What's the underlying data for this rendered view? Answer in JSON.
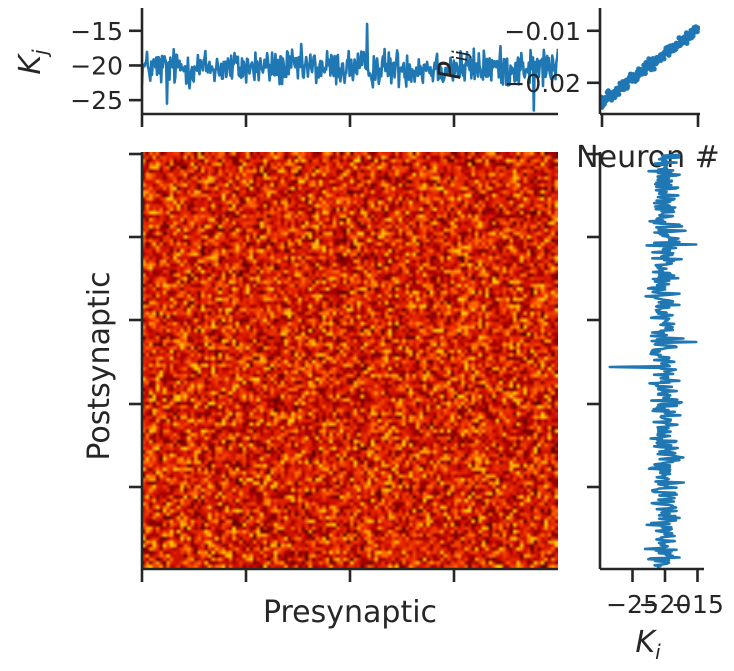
{
  "chart_data": [
    {
      "id": "top",
      "type": "line",
      "ylabel_base": "K",
      "ylabel_sub": "j",
      "xlabel": "",
      "yticks": [
        -15,
        -20,
        -25
      ],
      "ytick_labels": [
        "−15",
        "−20",
        "−25"
      ],
      "ylim": [
        -27,
        -12
      ],
      "xlim": [
        0,
        1000
      ],
      "series": [
        {
          "mean": -20.3,
          "spread": 2.2,
          "count": 500,
          "min": -26.5,
          "max": -14.0,
          "color": "#1f77b4"
        }
      ]
    },
    {
      "id": "scatter",
      "type": "scatter",
      "ylabel_base": "P",
      "ylabel_sub": "ij",
      "xlabel": "Neuron #",
      "yticks": [
        -0.01,
        -0.02
      ],
      "ytick_labels": [
        "−0.01",
        "−0.02"
      ],
      "ylim": [
        -0.026,
        -0.006
      ],
      "x_start": -0.024,
      "x_end": -0.0095,
      "spread": 0.0016,
      "count": 220,
      "color": "#1f77b4"
    },
    {
      "id": "matrix",
      "type": "heatmap",
      "xlabel": "Presynaptic",
      "ylabel": "Postsynaptic",
      "colormap": "hot",
      "cells": 120,
      "palette": [
        "#5a0000",
        "#800000",
        "#a80000",
        "#cc1200",
        "#e42500",
        "#f04000",
        "#ff6a00",
        "#ffa000",
        "#ffd000"
      ],
      "weights": [
        3,
        9,
        16,
        20,
        17,
        13,
        10,
        7,
        5
      ]
    },
    {
      "id": "right",
      "type": "line",
      "xlabel_base": "K",
      "xlabel_sub": "i",
      "xticks": [
        -25,
        -20,
        -15
      ],
      "xtick_labels": [
        "−25",
        "−20",
        "−15"
      ],
      "xlim": [
        -30,
        -14
      ],
      "series": [
        {
          "mean": -20.0,
          "spread": 2.0,
          "count": 480,
          "min": -28.5,
          "max": -15.2,
          "color": "#1f77b4"
        }
      ]
    }
  ]
}
